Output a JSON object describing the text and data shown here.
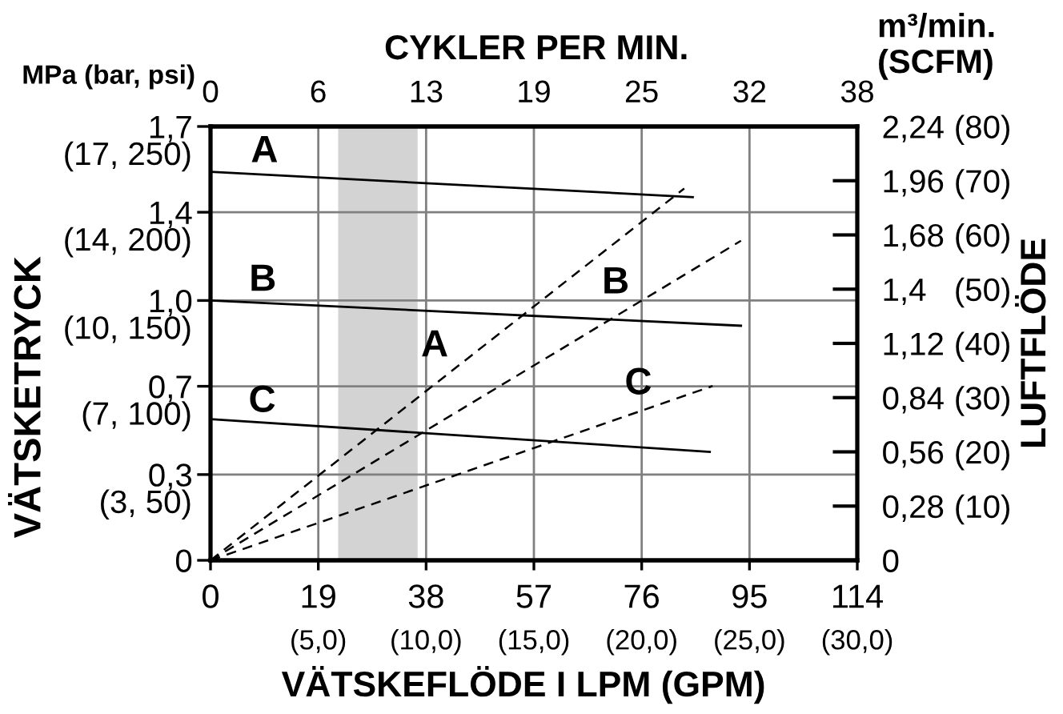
{
  "chart_data": {
    "type": "line",
    "x2label": "CYKLER PER MIN.",
    "xlabel": "VÄTSKEFLÖDE I LPM (GPM)",
    "ylabel": "VÄTSKETRYCK",
    "y2label": "LUFTFLÖDE",
    "annotations": [
      "MPa (bar, psi)",
      "m³/min.\n(SCFM)",
      "(5,0)",
      "(10,0)",
      "(15,0)",
      "(20,0)",
      "(25,0)",
      "(30,0)",
      "(3, 50)",
      "(7, 100)",
      "(10, 150)",
      "(14, 200)",
      "(17, 250)",
      {
        "text": "A",
        "x": 12.7,
        "y": 1.53
      },
      {
        "text": "B",
        "x": 12.4,
        "y": 1.02
      },
      {
        "text": "C",
        "x": 12.3,
        "y": 0.54
      },
      {
        "text": "A",
        "x": 42.7,
        "y": 0.76
      },
      {
        "text": "B",
        "x": 74.6,
        "y": 1.01
      },
      {
        "text": "C",
        "x": 78.6,
        "y": 0.61
      }
    ],
    "series": [
      {
        "color": "#000000",
        "line_style": "solid",
        "x": [
          0,
          85
        ],
        "values": [
          1.54,
          1.44
        ]
      },
      {
        "color": "#000000",
        "line_style": "solid",
        "x": [
          0,
          93.5
        ],
        "values": [
          1.03,
          0.93
        ]
      },
      {
        "color": "#000000",
        "line_style": "solid",
        "x": [
          0,
          88
        ],
        "values": [
          0.56,
          0.43
        ]
      },
      {
        "axis": "y2",
        "color": "#000000",
        "line_style": "dashed",
        "x": [
          0,
          83.5
        ],
        "values": [
          0,
          1.92
        ]
      },
      {
        "axis": "y2",
        "color": "#000000",
        "line_style": "dashed",
        "x": [
          0,
          93.5
        ],
        "values": [
          0,
          1.65
        ]
      },
      {
        "axis": "y2",
        "color": "#000000",
        "line_style": "dashed",
        "x": [
          0,
          88.5
        ],
        "values": [
          0,
          0.9
        ]
      }
    ],
    "bands": [
      {
        "axis": "x",
        "from": 22.5,
        "to": 36.5,
        "color": "#d3d3d3"
      }
    ],
    "xlim": [
      0,
      114
    ],
    "xticks": [
      0,
      19,
      38,
      57,
      76,
      95,
      114
    ],
    "x2lim": [
      0,
      38
    ],
    "x2ticks": [
      0,
      {
        "value": 6.33,
        "label": "6"
      },
      {
        "value": 12.67,
        "label": "13"
      },
      19,
      {
        "value": 25.33,
        "label": "25"
      },
      {
        "value": 31.67,
        "label": "32"
      },
      38
    ],
    "ylim": [
      0,
      1.72
    ],
    "yticks": [
      0,
      {
        "value": 0.34,
        "label": "0,3"
      },
      {
        "value": 0.69,
        "label": "0,7"
      },
      {
        "value": 1.03,
        "label": "1,0"
      },
      {
        "value": 1.38,
        "label": "1,4"
      },
      {
        "value": 1.72,
        "label": "1,7"
      }
    ],
    "y2lim": [
      0,
      2.24
    ],
    "y2ticks": [
      0,
      {
        "value": 0.28,
        "label": "0,28"
      },
      {
        "value": 0.56,
        "label": "0,56"
      },
      {
        "value": 0.84,
        "label": "0,84"
      },
      {
        "value": 1.12,
        "label": "1,12"
      },
      {
        "value": 1.4,
        "label": "1,4"
      },
      {
        "value": 1.68,
        "label": "1,68"
      },
      {
        "value": 1.96,
        "label": "1,96"
      },
      {
        "value": 2.24,
        "label": "2,24"
      }
    ],
    "y3lim": [
      0,
      80
    ],
    "y3ticks": [
      {
        "value": 10,
        "label": "(10)"
      },
      {
        "value": 20,
        "label": "(20)"
      },
      {
        "value": 30,
        "label": "(30)"
      },
      {
        "value": 40,
        "label": "(40)"
      },
      {
        "value": 50,
        "label": "(50)"
      },
      {
        "value": 60,
        "label": "(60)"
      },
      {
        "value": 70,
        "label": "(70)"
      },
      {
        "value": 80,
        "label": "(80)"
      }
    ],
    "grid": true
  }
}
